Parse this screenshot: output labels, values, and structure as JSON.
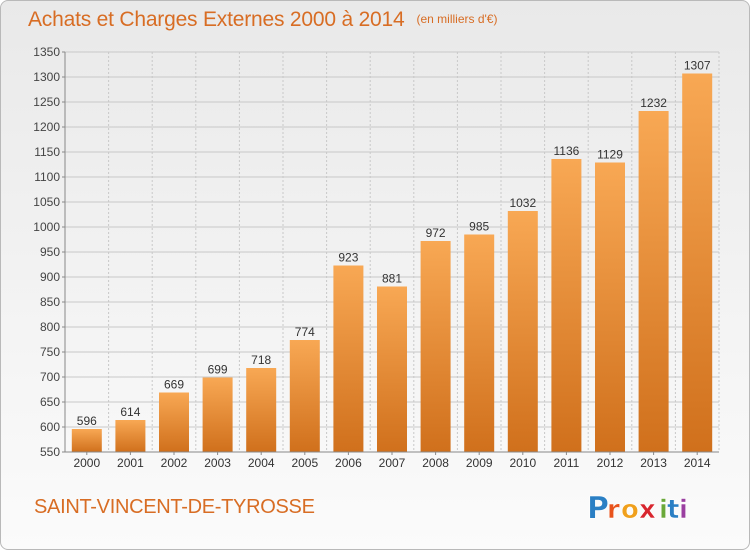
{
  "chart_data": {
    "type": "bar",
    "title": "Achats et Charges Externes 2000 à 2014",
    "subtitle": "(en milliers d'€)",
    "categories": [
      "2000",
      "2001",
      "2002",
      "2003",
      "2004",
      "2005",
      "2006",
      "2007",
      "2008",
      "2009",
      "2010",
      "2011",
      "2012",
      "2013",
      "2014"
    ],
    "values": [
      596,
      614,
      669,
      699,
      718,
      774,
      923,
      881,
      972,
      985,
      1032,
      1136,
      1129,
      1232,
      1307
    ],
    "data_labels": [
      "596",
      "614",
      "669",
      "699",
      "718",
      "774",
      "923",
      "881",
      "972",
      "985",
      "1032",
      "1136",
      "1129",
      "1232",
      "1307"
    ],
    "ylim": [
      550,
      1350
    ],
    "yticks": [
      550,
      600,
      650,
      700,
      750,
      800,
      850,
      900,
      950,
      1000,
      1050,
      1100,
      1150,
      1200,
      1250,
      1300,
      1350
    ],
    "grid": true,
    "colors": {
      "bar_light": "#f8a854",
      "bar_dark": "#d0701c",
      "grid": "#c8c8c8",
      "title": "#d86d24"
    }
  },
  "footer": {
    "commune": "SAINT-VINCENT-DE-TYROSSE",
    "logo": {
      "text": "Proxiti",
      "letters": [
        "P",
        "r",
        "o",
        "x",
        "i",
        "t",
        "i"
      ],
      "colors": [
        "#2a7fc4",
        "#e8531c",
        "#f0a01c",
        "#d8262e",
        "#6aa83a",
        "#2a7fc4",
        "#9a3fa0"
      ]
    }
  }
}
